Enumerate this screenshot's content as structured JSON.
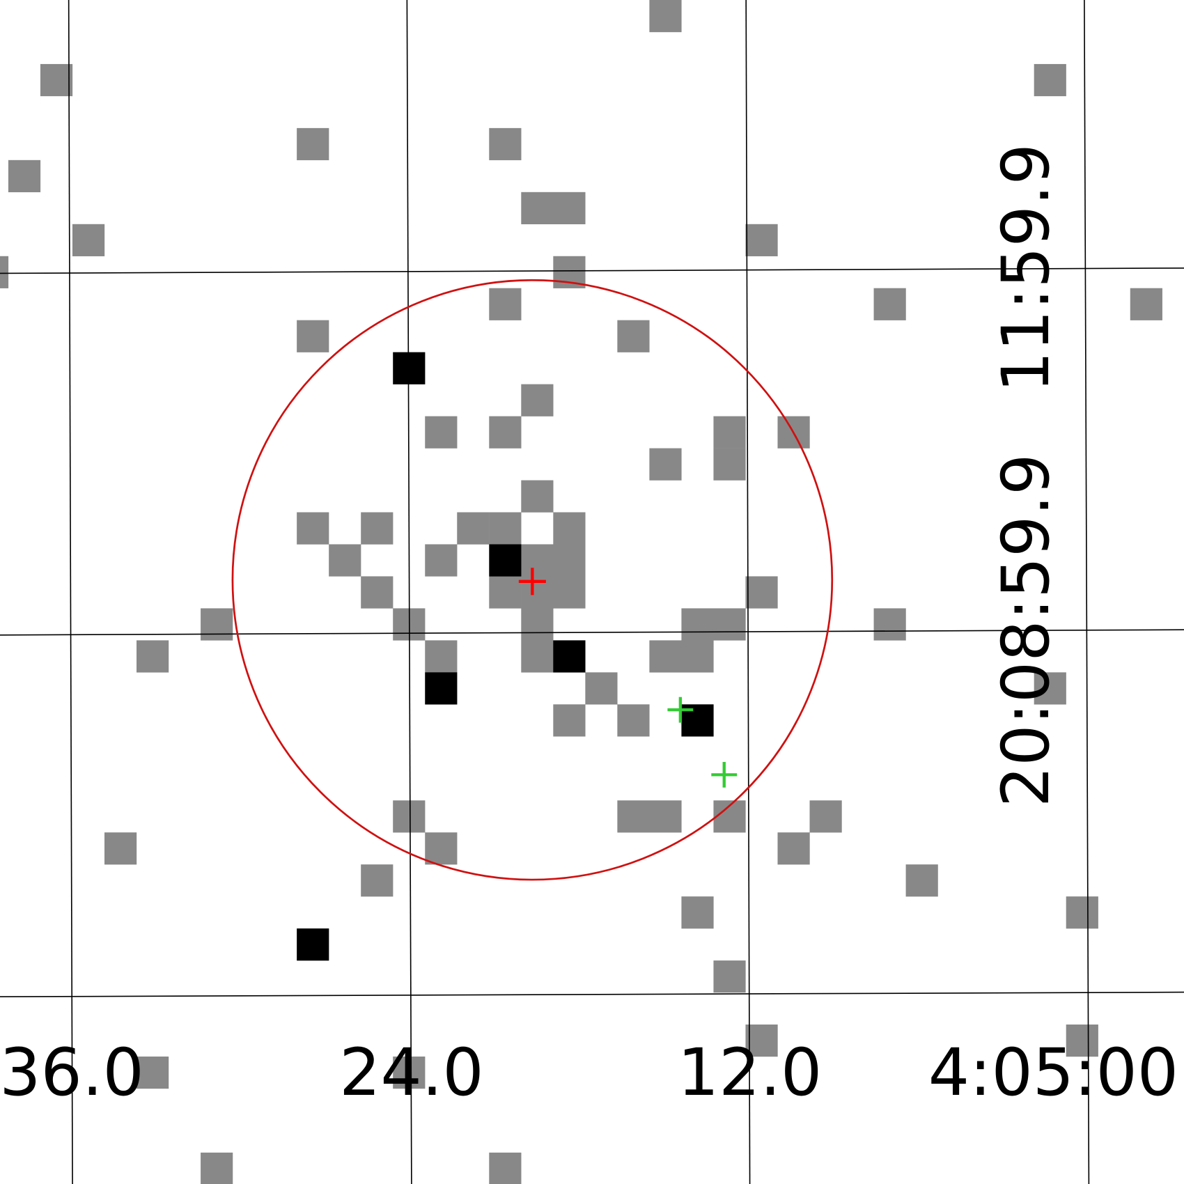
{
  "axis_labels": {
    "x": [
      "36.0",
      "24.0",
      "12.0",
      "4:05:00"
    ],
    "y": [
      "20:08:59.9",
      "11:59.9"
    ]
  }
}
